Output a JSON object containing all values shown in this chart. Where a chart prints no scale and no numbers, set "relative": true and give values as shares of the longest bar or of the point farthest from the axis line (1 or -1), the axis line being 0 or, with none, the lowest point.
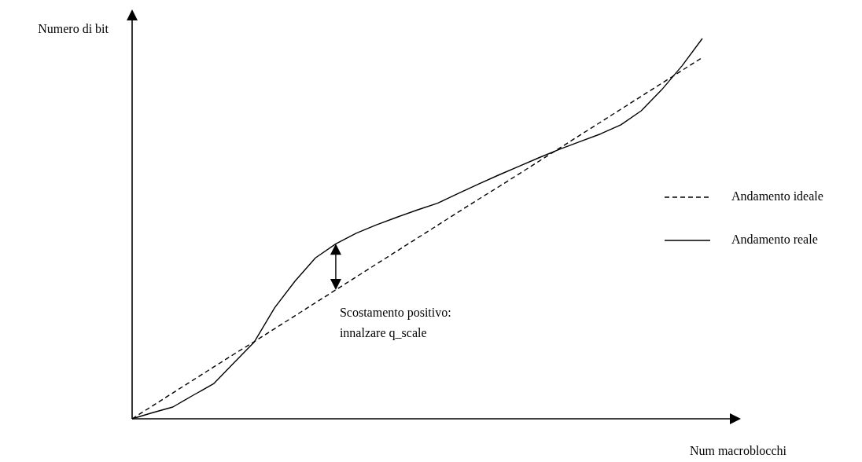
{
  "chart_data": {
    "type": "line",
    "relative": true,
    "xlabel": "Num macroblocchi",
    "ylabel": "Numero di bit",
    "legend": "right",
    "marker": "none",
    "categories": [
      null,
      null,
      null,
      null,
      null,
      null,
      null,
      null,
      null,
      null,
      null,
      null,
      null,
      null,
      null,
      null,
      null,
      null,
      null,
      null,
      null,
      null,
      null,
      null,
      null,
      null,
      null,
      null,
      null
    ],
    "series": [
      {
        "name": "Andamento ideale",
        "color": "#000000",
        "line_style": "dashed",
        "values": [
          0,
          0.034,
          0.068,
          0.102,
          0.136,
          0.17,
          0.203,
          0.237,
          0.271,
          0.305,
          0.339,
          0.373,
          0.407,
          0.441,
          0.475,
          0.509,
          0.543,
          0.577,
          0.61,
          0.644,
          0.678,
          0.712,
          0.746,
          0.78,
          0.814,
          0.848,
          0.882,
          0.916,
          0.95
        ]
      },
      {
        "name": "Andamento reale",
        "color": "#000000",
        "line_style": "solid",
        "values": [
          0,
          0.016,
          0.031,
          0.062,
          0.092,
          0.147,
          0.202,
          0.292,
          0.362,
          0.423,
          0.46,
          0.488,
          0.51,
          0.53,
          0.549,
          0.567,
          0.592,
          0.617,
          0.641,
          0.664,
          0.687,
          0.709,
          0.729,
          0.749,
          0.773,
          0.81,
          0.865,
          0.928,
          1
        ]
      }
    ],
    "annotations": [
      "Scostamento positivo:\ninnalzare q_scale"
    ]
  }
}
